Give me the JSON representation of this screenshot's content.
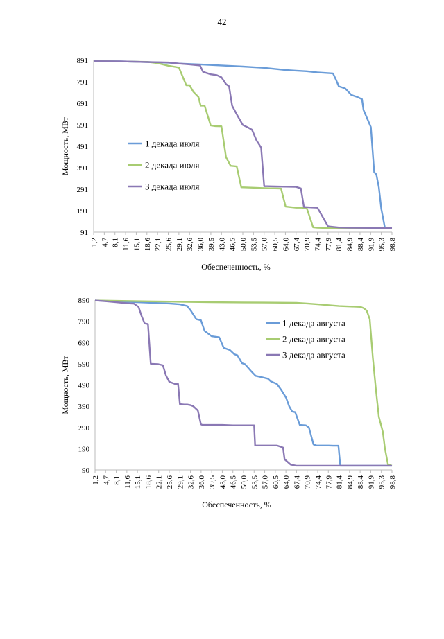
{
  "page": {
    "number": "42"
  },
  "chart_data": [
    {
      "type": "line",
      "xlabel": "Обеспеченность, %",
      "ylabel": "Мощность, МВт",
      "ylim": [
        91,
        891
      ],
      "yticks": [
        "891",
        "791",
        "691",
        "591",
        "491",
        "391",
        "291",
        "191",
        "91"
      ],
      "yticks_values": [
        891,
        791,
        691,
        591,
        491,
        391,
        291,
        191,
        91
      ],
      "xticks": [
        "1,2",
        "4,7",
        "8,1",
        "11,6",
        "15,1",
        "18,6",
        "22,1",
        "25,6",
        "29,1",
        "32,6",
        "36,0",
        "39,5",
        "43,0",
        "46,5",
        "50,0",
        "53,5",
        "57,0",
        "60,5",
        "64,0",
        "67,4",
        "70,9",
        "74,4",
        "77,9",
        "81,4",
        "84,9",
        "88,4",
        "91,9",
        "95,3",
        "98,8"
      ],
      "xlim": [
        1.2,
        98.8
      ],
      "series": [
        {
          "name": "1 декада июля",
          "color": "#6A9CD8",
          "x": [
            1.2,
            10,
            18.6,
            25.6,
            29.1,
            36,
            43,
            50,
            53.5,
            57,
            60.5,
            64,
            67.4,
            70.9,
            74.4,
            79.5,
            80.5,
            81.4,
            83.5,
            85.5,
            87.5,
            89,
            89.5,
            91.9,
            93,
            93.7,
            94.5,
            95.3,
            96.5,
            98.8
          ],
          "values": [
            887,
            886,
            883,
            880,
            876,
            872,
            867,
            862,
            859,
            856,
            851,
            846,
            843,
            840,
            835,
            830,
            800,
            770,
            760,
            730,
            720,
            710,
            660,
            580,
            370,
            360,
            300,
            200,
            110,
            108
          ]
        },
        {
          "name": "2 декада июля",
          "color": "#A8CC72",
          "x": [
            1.2,
            18.6,
            22,
            25.6,
            28,
            29.1,
            31.5,
            32.6,
            33.8,
            35.5,
            36.2,
            37.5,
            39.5,
            41,
            43,
            44.5,
            46,
            48,
            49.5,
            53.5,
            57,
            60.5,
            62.5,
            64,
            67.4,
            69.5,
            71,
            73,
            74.4,
            77.9,
            98.8
          ],
          "values": [
            887,
            884,
            878,
            866,
            860,
            857,
            775,
            775,
            745,
            720,
            680,
            680,
            588,
            585,
            584,
            440,
            400,
            397,
            300,
            298,
            296,
            295,
            294,
            210,
            205,
            205,
            200,
            114,
            112,
            110,
            108
          ]
        },
        {
          "name": "3 декада июля",
          "color": "#8A78B4",
          "x": [
            1.2,
            10,
            18.6,
            25.6,
            29.1,
            32.6,
            36,
            37,
            39.5,
            41.5,
            43,
            44.5,
            45.5,
            46.5,
            48,
            50,
            51.5,
            53,
            54.5,
            56,
            57,
            58,
            60.5,
            64,
            67.4,
            69,
            70,
            72.5,
            74.4,
            77.9,
            81.4,
            85,
            98.8
          ],
          "values": [
            887,
            886,
            883,
            881,
            876,
            872,
            867,
            837,
            826,
            822,
            812,
            780,
            770,
            680,
            640,
            590,
            580,
            568,
            518,
            485,
            305,
            305,
            304,
            303,
            302,
            295,
            208,
            206,
            205,
            118,
            113,
            112,
            110
          ]
        }
      ],
      "legend": {
        "placement": "center-left"
      }
    },
    {
      "type": "line",
      "xlabel": "Обеспеченность, %",
      "ylabel": "Мощность, МВт",
      "ylim": [
        90,
        890
      ],
      "yticks": [
        "890",
        "790",
        "690",
        "590",
        "490",
        "390",
        "290",
        "190",
        "90"
      ],
      "yticks_values": [
        890,
        790,
        690,
        590,
        490,
        390,
        290,
        190,
        90
      ],
      "xticks": [
        "1,2",
        "4,7",
        "8,1",
        "11,6",
        "15,1",
        "18,6",
        "22,1",
        "25,6",
        "29,1",
        "32,6",
        "36,0",
        "39,5",
        "43,0",
        "46,5",
        "50,0",
        "53,5",
        "57,0",
        "60,5",
        "64,0",
        "67,4",
        "70,9",
        "74,4",
        "77,9",
        "81,4",
        "84,9",
        "88,4",
        "91,9",
        "95,3",
        "98,8"
      ],
      "xlim": [
        1.2,
        98.8
      ],
      "series": [
        {
          "name": "1 декада августа",
          "color": "#6A9CD8",
          "x": [
            1.2,
            8,
            15.1,
            18.6,
            25.6,
            29.1,
            31.5,
            32.6,
            34.5,
            36,
            37.2,
            39.5,
            42,
            43.5,
            45.5,
            47,
            48,
            49.5,
            50.5,
            52.5,
            54,
            56,
            58,
            59,
            61,
            62.5,
            64,
            65,
            66,
            67,
            68.5,
            70.5,
            71.5,
            73,
            74,
            78,
            79.5,
            80.5,
            81.2,
            81.8,
            98.8
          ],
          "values": [
            888,
            884,
            880,
            878,
            874,
            870,
            862,
            842,
            800,
            795,
            745,
            720,
            715,
            665,
            655,
            635,
            630,
            593,
            588,
            555,
            533,
            527,
            520,
            507,
            495,
            465,
            430,
            390,
            365,
            362,
            302,
            300,
            290,
            210,
            205,
            205,
            204,
            204,
            204,
            110,
            110
          ]
        },
        {
          "name": "2 декада августа",
          "color": "#A8CC72",
          "x": [
            1.2,
            10,
            18.6,
            29.1,
            39.5,
            50,
            60.5,
            67.4,
            70.9,
            74.4,
            77.9,
            81.4,
            84.9,
            88.4,
            89.5,
            90.5,
            91.5,
            92.5,
            93.5,
            94.5,
            95.8,
            96.5,
            97.5,
            98.8
          ],
          "values": [
            888,
            886,
            884,
            882,
            880,
            879,
            878,
            877,
            874,
            870,
            866,
            862,
            860,
            858,
            852,
            840,
            800,
            620,
            470,
            340,
            270,
            190,
            115,
            110
          ]
        },
        {
          "name": "3 декада августа",
          "color": "#8A78B4",
          "x": [
            1.2,
            5,
            8.1,
            11.6,
            14,
            15.5,
            16.5,
            17.5,
            18.6,
            19.5,
            22,
            23.5,
            24.5,
            25.6,
            27.5,
            28.5,
            29.1,
            30.5,
            31.5,
            32.6,
            33.5,
            35,
            36,
            36.5,
            38,
            39.5,
            43,
            46.5,
            50,
            53.5,
            53.8,
            57,
            60.5,
            61,
            63,
            63.5,
            65.5,
            67.4,
            98.8
          ],
          "values": [
            888,
            884,
            880,
            875,
            873,
            858,
            815,
            780,
            777,
            590,
            588,
            583,
            535,
            505,
            495,
            495,
            400,
            398,
            398,
            395,
            390,
            370,
            305,
            302,
            302,
            302,
            302,
            300,
            300,
            300,
            205,
            205,
            205,
            205,
            195,
            140,
            115,
            110,
            110
          ]
        }
      ],
      "legend": {
        "placement": "center-right"
      }
    }
  ]
}
